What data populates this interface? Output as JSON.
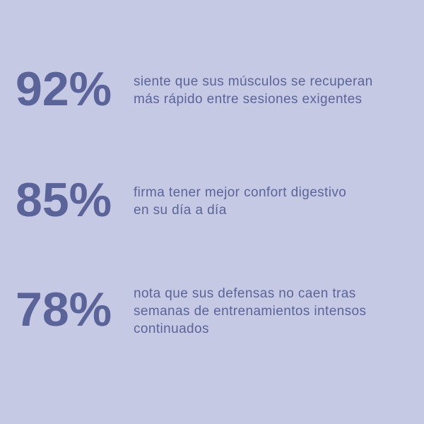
{
  "stats": [
    {
      "value": "92%",
      "lines": [
        "siente que sus músculos se recuperan",
        "más rápido entre sesiones exigentes"
      ]
    },
    {
      "value": "85%",
      "lines": [
        "firma tener mejor confort digestivo",
        "en su día a día"
      ]
    },
    {
      "value": "78%",
      "lines": [
        "nota que sus defensas no caen tras",
        "semanas de entrenamientos intensos",
        "continuados"
      ]
    }
  ]
}
